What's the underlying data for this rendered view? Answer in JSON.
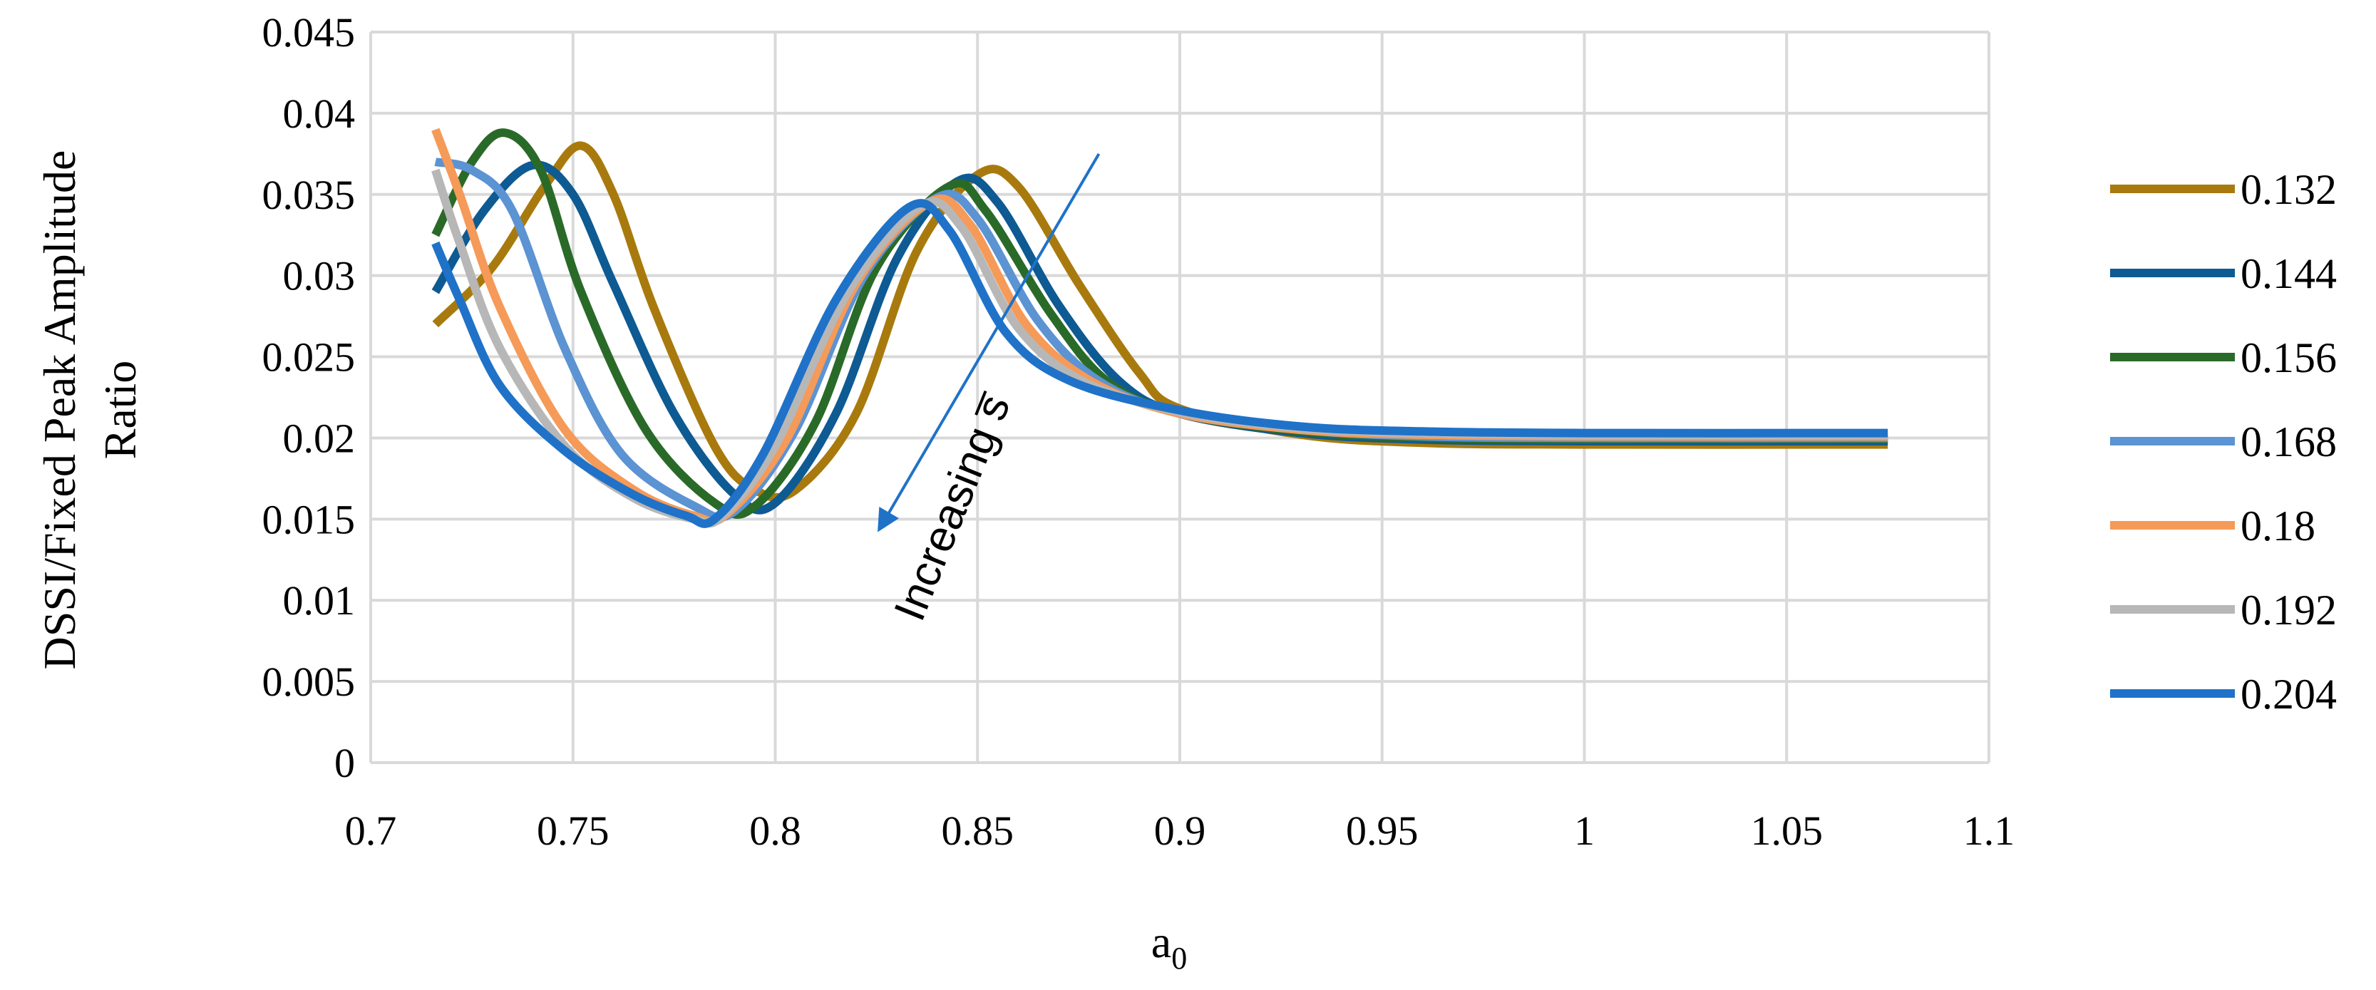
{
  "chart_data": {
    "type": "line",
    "xlabel": "a",
    "xlabel_sub": "0",
    "ylabel_line1": "DSSI/Fixed Peak Amplitude",
    "ylabel_line2": "Ratio",
    "xlim": [
      0.7,
      1.1
    ],
    "ylim": [
      0,
      0.045
    ],
    "xticks": [
      "0.7",
      "0.75",
      "0.8",
      "0.85",
      "0.9",
      "0.95",
      "1",
      "1.05",
      "1.1"
    ],
    "yticks": [
      "0",
      "0.005",
      "0.01",
      "0.015",
      "0.02",
      "0.025",
      "0.03",
      "0.035",
      "0.04",
      "0.045"
    ],
    "grid": true,
    "legend_position": "right",
    "annotation": {
      "text": "Increasing s̅",
      "arrow_from": [
        0.88,
        0.0375
      ],
      "arrow_to": [
        0.826,
        0.0145
      ]
    },
    "series": [
      {
        "name": "0.132",
        "color": "#A87A0E",
        "points": [
          [
            0.716,
            0.027
          ],
          [
            0.73,
            0.0305
          ],
          [
            0.743,
            0.0355
          ],
          [
            0.752,
            0.038
          ],
          [
            0.76,
            0.035
          ],
          [
            0.77,
            0.028
          ],
          [
            0.785,
            0.0195
          ],
          [
            0.795,
            0.0168
          ],
          [
            0.805,
            0.0168
          ],
          [
            0.82,
            0.0215
          ],
          [
            0.835,
            0.0315
          ],
          [
            0.85,
            0.0362
          ],
          [
            0.86,
            0.0355
          ],
          [
            0.875,
            0.0295
          ],
          [
            0.89,
            0.024
          ],
          [
            0.9,
            0.0218
          ],
          [
            0.93,
            0.0202
          ],
          [
            0.96,
            0.0197
          ],
          [
            1.0,
            0.0196
          ],
          [
            1.075,
            0.0196
          ]
        ]
      },
      {
        "name": "0.144",
        "color": "#0E5A93",
        "points": [
          [
            0.716,
            0.029
          ],
          [
            0.728,
            0.034
          ],
          [
            0.74,
            0.0368
          ],
          [
            0.75,
            0.035
          ],
          [
            0.76,
            0.0295
          ],
          [
            0.775,
            0.0215
          ],
          [
            0.79,
            0.0165
          ],
          [
            0.8,
            0.016
          ],
          [
            0.815,
            0.0215
          ],
          [
            0.83,
            0.031
          ],
          [
            0.845,
            0.0358
          ],
          [
            0.855,
            0.0345
          ],
          [
            0.87,
            0.0282
          ],
          [
            0.885,
            0.0235
          ],
          [
            0.9,
            0.0215
          ],
          [
            0.93,
            0.0203
          ],
          [
            0.96,
            0.0199
          ],
          [
            1.0,
            0.0198
          ],
          [
            1.075,
            0.0198
          ]
        ]
      },
      {
        "name": "0.156",
        "color": "#2A6A28",
        "points": [
          [
            0.716,
            0.0325
          ],
          [
            0.725,
            0.037
          ],
          [
            0.733,
            0.0388
          ],
          [
            0.742,
            0.0365
          ],
          [
            0.752,
            0.029
          ],
          [
            0.768,
            0.0205
          ],
          [
            0.785,
            0.016
          ],
          [
            0.795,
            0.0158
          ],
          [
            0.81,
            0.021
          ],
          [
            0.825,
            0.0305
          ],
          [
            0.843,
            0.0355
          ],
          [
            0.852,
            0.034
          ],
          [
            0.868,
            0.0277
          ],
          [
            0.882,
            0.0235
          ],
          [
            0.9,
            0.0215
          ],
          [
            0.93,
            0.0204
          ],
          [
            0.96,
            0.02
          ],
          [
            1.0,
            0.0199
          ],
          [
            1.075,
            0.0199
          ]
        ]
      },
      {
        "name": "0.168",
        "color": "#5B93D3",
        "points": [
          [
            0.716,
            0.037
          ],
          [
            0.725,
            0.0365
          ],
          [
            0.735,
            0.034
          ],
          [
            0.748,
            0.0255
          ],
          [
            0.762,
            0.019
          ],
          [
            0.78,
            0.0158
          ],
          [
            0.79,
            0.0155
          ],
          [
            0.805,
            0.0205
          ],
          [
            0.822,
            0.03
          ],
          [
            0.84,
            0.0348
          ],
          [
            0.85,
            0.0335
          ],
          [
            0.865,
            0.0272
          ],
          [
            0.88,
            0.0235
          ],
          [
            0.9,
            0.0215
          ],
          [
            0.93,
            0.0205
          ],
          [
            0.96,
            0.0201
          ],
          [
            1.0,
            0.02
          ],
          [
            1.075,
            0.02
          ]
        ]
      },
      {
        "name": "0.18",
        "color": "#F59A58",
        "points": [
          [
            0.716,
            0.039
          ],
          [
            0.722,
            0.035
          ],
          [
            0.732,
            0.028
          ],
          [
            0.748,
            0.0205
          ],
          [
            0.765,
            0.0168
          ],
          [
            0.78,
            0.0152
          ],
          [
            0.788,
            0.0153
          ],
          [
            0.803,
            0.02
          ],
          [
            0.82,
            0.0295
          ],
          [
            0.838,
            0.0345
          ],
          [
            0.848,
            0.0332
          ],
          [
            0.862,
            0.027
          ],
          [
            0.878,
            0.0235
          ],
          [
            0.9,
            0.0215
          ],
          [
            0.93,
            0.0205
          ],
          [
            0.96,
            0.0202
          ],
          [
            1.0,
            0.0201
          ],
          [
            1.075,
            0.0201
          ]
        ]
      },
      {
        "name": "0.192",
        "color": "#B7B7B7",
        "points": [
          [
            0.716,
            0.0365
          ],
          [
            0.722,
            0.032
          ],
          [
            0.732,
            0.0255
          ],
          [
            0.748,
            0.0195
          ],
          [
            0.765,
            0.0163
          ],
          [
            0.78,
            0.015
          ],
          [
            0.787,
            0.0152
          ],
          [
            0.8,
            0.0195
          ],
          [
            0.818,
            0.029
          ],
          [
            0.836,
            0.0343
          ],
          [
            0.846,
            0.033
          ],
          [
            0.86,
            0.0268
          ],
          [
            0.876,
            0.0235
          ],
          [
            0.9,
            0.0216
          ],
          [
            0.93,
            0.0206
          ],
          [
            0.96,
            0.0203
          ],
          [
            1.0,
            0.0202
          ],
          [
            1.075,
            0.0202
          ]
        ]
      },
      {
        "name": "0.204",
        "color": "#1F72C8",
        "points": [
          [
            0.716,
            0.032
          ],
          [
            0.722,
            0.0285
          ],
          [
            0.732,
            0.0232
          ],
          [
            0.748,
            0.0192
          ],
          [
            0.765,
            0.0165
          ],
          [
            0.778,
            0.0152
          ],
          [
            0.785,
            0.015
          ],
          [
            0.797,
            0.019
          ],
          [
            0.815,
            0.0285
          ],
          [
            0.833,
            0.0342
          ],
          [
            0.843,
            0.0328
          ],
          [
            0.857,
            0.0265
          ],
          [
            0.873,
            0.0235
          ],
          [
            0.9,
            0.0217
          ],
          [
            0.93,
            0.0207
          ],
          [
            0.96,
            0.0204
          ],
          [
            1.0,
            0.0203
          ],
          [
            1.075,
            0.0203
          ]
        ]
      }
    ]
  }
}
